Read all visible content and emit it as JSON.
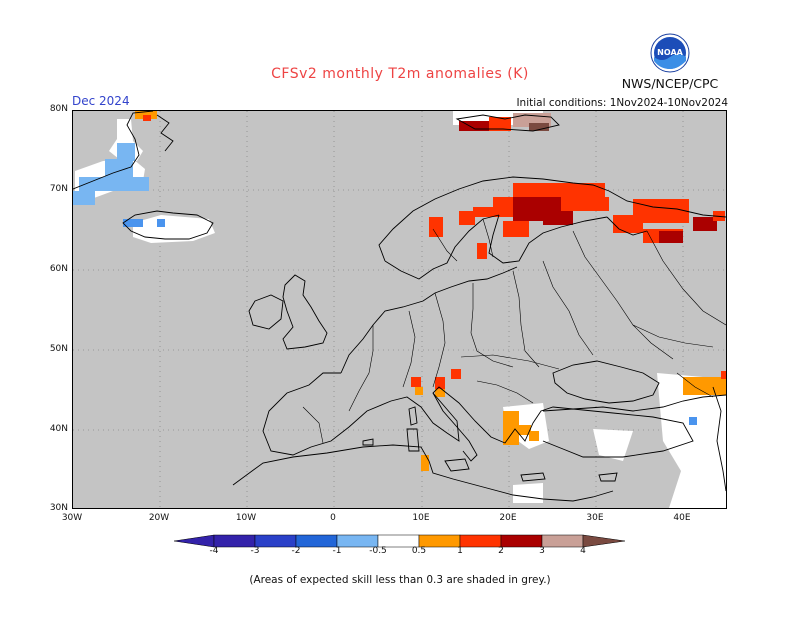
{
  "header": {
    "title": "CFSv2 monthly T2m anomalies (K)",
    "month": "Dec 2024",
    "initial_conditions": "Initial conditions: 1Nov2024-10Nov2024",
    "agency": "NWS/NCEP/CPC",
    "logo_text": "NOAA"
  },
  "map": {
    "lat_labels": [
      "80N",
      "70N",
      "60N",
      "50N",
      "40N",
      "30N"
    ],
    "lon_labels": [
      "30W",
      "20W",
      "10W",
      "0",
      "10E",
      "20E",
      "30E",
      "40E"
    ],
    "lat_range": [
      30,
      80
    ],
    "lon_range": [
      -30,
      45
    ],
    "grid": true,
    "mask_color": "#c4c4c4"
  },
  "colorbar": {
    "labels": [
      "-4",
      "-3",
      "-2",
      "-1",
      "-0.5",
      "0.5",
      "1",
      "2",
      "3",
      "4"
    ],
    "colors": [
      "#3322aa",
      "#2a40c8",
      "#2266d8",
      "#4a94ee",
      "#78b6f2",
      "#ffffff",
      "#ff9900",
      "#ff3300",
      "#aa0000",
      "#c9a097",
      "#7a4a40"
    ]
  },
  "footer": {
    "note": "(Areas of expected skill less than 0.3 are shaded in grey.)"
  }
}
